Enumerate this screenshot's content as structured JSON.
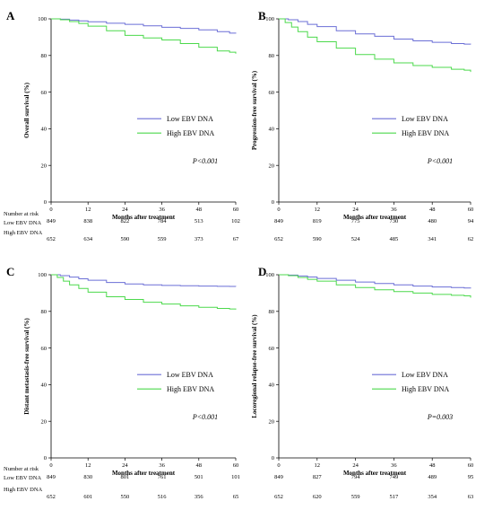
{
  "chart_data": [
    {
      "type": "line",
      "panel": "A",
      "ylabel": "Overall survival (%)",
      "xlabel": "Months after treatment",
      "xlim": [
        0,
        60
      ],
      "ylim": [
        0,
        100
      ],
      "xticks": [
        0,
        12,
        24,
        36,
        48,
        60
      ],
      "yticks": [
        0,
        20,
        40,
        60,
        80,
        100
      ],
      "legend_position": "center-right",
      "p_value": "P<0.001",
      "series": [
        {
          "name": "Low EBV DNA",
          "color": "#6b6fd6",
          "x": [
            0,
            3,
            6,
            9,
            12,
            18,
            24,
            30,
            36,
            42,
            48,
            54,
            58,
            60
          ],
          "y": [
            100,
            99.8,
            99.3,
            98.9,
            98.4,
            97.6,
            97.0,
            96.2,
            95.4,
            94.8,
            94.0,
            93.0,
            92.2,
            92.0
          ]
        },
        {
          "name": "High EBV DNA",
          "color": "#4cd94c",
          "x": [
            0,
            3,
            6,
            9,
            12,
            18,
            24,
            30,
            36,
            42,
            48,
            54,
            58,
            60
          ],
          "y": [
            100,
            99.5,
            98.5,
            97.5,
            96.0,
            93.5,
            91.0,
            89.6,
            88.5,
            86.5,
            84.5,
            82.5,
            81.8,
            81.0
          ]
        }
      ],
      "risk_table": {
        "title": "Number at risk",
        "groups": [
          {
            "label": "Low EBV DNA",
            "values": [
              "849",
              "838",
              "822",
              "784",
              "513",
              "102"
            ]
          },
          {
            "label": "High EBV DNA",
            "values": [
              "652",
              "634",
              "590",
              "559",
              "373",
              "67"
            ]
          }
        ]
      }
    },
    {
      "type": "line",
      "panel": "B",
      "ylabel": "Progression-free survival (%)",
      "xlabel": "Months after treatment",
      "xlim": [
        0,
        60
      ],
      "ylim": [
        0,
        100
      ],
      "xticks": [
        0,
        12,
        24,
        36,
        48,
        60
      ],
      "yticks": [
        0,
        20,
        40,
        60,
        80,
        100
      ],
      "legend_position": "center-right",
      "p_value": "P<0.001",
      "series": [
        {
          "name": "Low EBV DNA",
          "color": "#6b6fd6",
          "x": [
            0,
            3,
            6,
            9,
            12,
            18,
            24,
            30,
            36,
            42,
            48,
            54,
            58,
            60
          ],
          "y": [
            100,
            99.5,
            98.5,
            97.0,
            95.8,
            93.5,
            91.8,
            90.5,
            89.0,
            88.0,
            87.2,
            86.5,
            86.2,
            86.0
          ]
        },
        {
          "name": "High EBV DNA",
          "color": "#4cd94c",
          "x": [
            0,
            2,
            4,
            6,
            9,
            12,
            18,
            24,
            30,
            36,
            42,
            48,
            54,
            58,
            60
          ],
          "y": [
            100,
            98.0,
            95.5,
            93.0,
            90.0,
            87.5,
            84.0,
            80.5,
            78.0,
            76.0,
            74.5,
            73.5,
            72.5,
            72.0,
            71.0
          ]
        }
      ],
      "risk_table": {
        "title": "",
        "groups": [
          {
            "label": "",
            "values": [
              "849",
              "819",
              "775",
              "730",
              "480",
              "94"
            ]
          },
          {
            "label": "",
            "values": [
              "652",
              "590",
              "524",
              "485",
              "341",
              "62"
            ]
          }
        ]
      }
    },
    {
      "type": "line",
      "panel": "C",
      "ylabel": "Distant metastasis-free survival (%)",
      "xlabel": "Months after treatment",
      "xlim": [
        0,
        60
      ],
      "ylim": [
        0,
        100
      ],
      "xticks": [
        0,
        12,
        24,
        36,
        48,
        60
      ],
      "yticks": [
        0,
        20,
        40,
        60,
        80,
        100
      ],
      "legend_position": "center-right",
      "p_value": "P<0.001",
      "series": [
        {
          "name": "Low EBV DNA",
          "color": "#6b6fd6",
          "x": [
            0,
            3,
            6,
            9,
            12,
            18,
            24,
            30,
            36,
            42,
            48,
            54,
            58,
            60
          ],
          "y": [
            100,
            99.5,
            98.7,
            97.8,
            97.0,
            95.8,
            95.0,
            94.5,
            94.2,
            94.0,
            93.8,
            93.7,
            93.6,
            93.5
          ]
        },
        {
          "name": "High EBV DNA",
          "color": "#4cd94c",
          "x": [
            0,
            2,
            4,
            6,
            9,
            12,
            18,
            24,
            30,
            36,
            42,
            48,
            54,
            58,
            60
          ],
          "y": [
            100,
            98.5,
            96.5,
            94.5,
            92.5,
            90.5,
            88.0,
            86.5,
            85.0,
            84.0,
            83.0,
            82.2,
            81.6,
            81.3,
            81.0
          ]
        }
      ],
      "risk_table": {
        "title": "Number at risk",
        "groups": [
          {
            "label": "Low EBV DNA",
            "values": [
              "849",
              "830",
              "801",
              "761",
              "501",
              "101"
            ]
          },
          {
            "label": "High EBV DNA",
            "values": [
              "652",
              "601",
              "550",
              "516",
              "356",
              "65"
            ]
          }
        ]
      }
    },
    {
      "type": "line",
      "panel": "D",
      "ylabel": "Locoregional relapse-free survival (%)",
      "xlabel": "Months after treatment",
      "xlim": [
        0,
        60
      ],
      "ylim": [
        0,
        100
      ],
      "xticks": [
        0,
        12,
        24,
        36,
        48,
        60
      ],
      "yticks": [
        0,
        20,
        40,
        60,
        80,
        100
      ],
      "legend_position": "center-right",
      "p_value": "P=0.003",
      "series": [
        {
          "name": "Low EBV DNA",
          "color": "#6b6fd6",
          "x": [
            0,
            3,
            6,
            9,
            12,
            18,
            24,
            30,
            36,
            42,
            48,
            54,
            58,
            60
          ],
          "y": [
            100,
            99.8,
            99.3,
            98.8,
            98.0,
            97.0,
            96.0,
            95.2,
            94.5,
            93.8,
            93.3,
            93.0,
            92.8,
            92.5
          ]
        },
        {
          "name": "High EBV DNA",
          "color": "#4cd94c",
          "x": [
            0,
            3,
            6,
            9,
            12,
            18,
            24,
            30,
            36,
            42,
            48,
            54,
            58,
            60
          ],
          "y": [
            100,
            99.5,
            98.5,
            97.5,
            96.5,
            94.5,
            93.0,
            91.8,
            90.8,
            90.0,
            89.3,
            88.8,
            88.5,
            87.5
          ]
        }
      ],
      "risk_table": {
        "title": "",
        "groups": [
          {
            "label": "",
            "values": [
              "849",
              "827",
              "794",
              "749",
              "489",
              "95"
            ]
          },
          {
            "label": "",
            "values": [
              "652",
              "620",
              "559",
              "517",
              "354",
              "63"
            ]
          }
        ]
      }
    }
  ]
}
